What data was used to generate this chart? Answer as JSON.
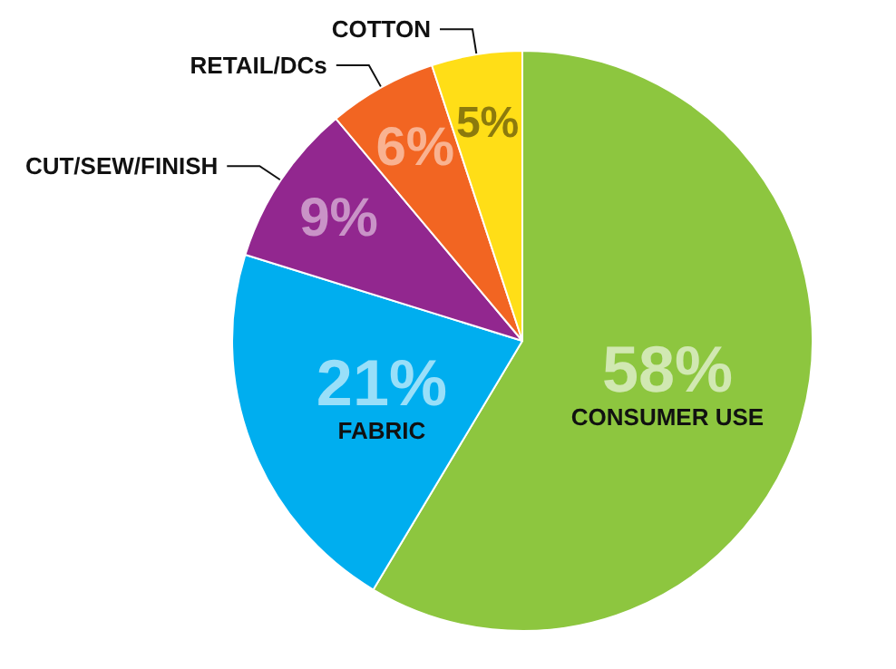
{
  "chart_data": {
    "type": "pie",
    "categories": [
      "CONSUMER USE",
      "FABRIC",
      "CUT/SEW/FINISH",
      "RETAIL/DCs",
      "COTTON"
    ],
    "values": [
      58,
      21,
      9,
      6,
      5
    ],
    "value_labels": [
      "58%",
      "21%",
      "9%",
      "6%",
      "5%"
    ],
    "colors": [
      "#8dc63f",
      "#00aeef",
      "#92278f",
      "#f26522",
      "#ffde17"
    ]
  }
}
